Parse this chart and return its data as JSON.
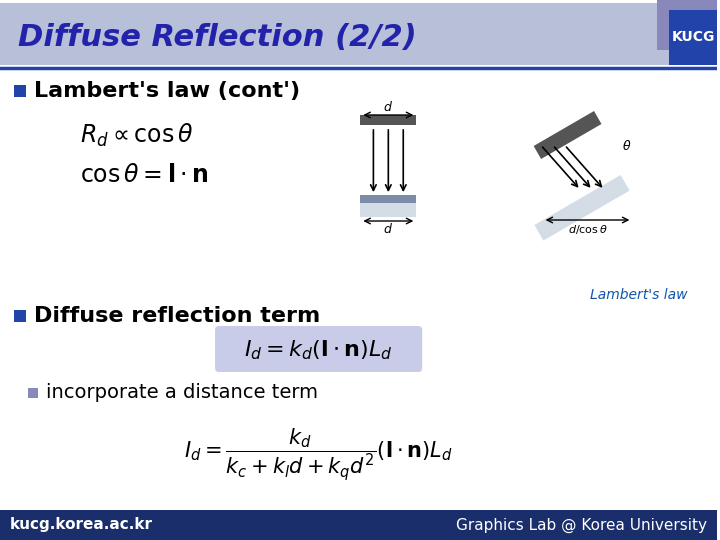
{
  "title": "Diffuse Reflection (2/2)",
  "title_color": "#2222AA",
  "title_bg_color": "#B8BFD8",
  "title_fontsize": 22,
  "kucg_box_color1": "#8888BB",
  "kucg_box_color2": "#2244AA",
  "kucg_text": "KUCG",
  "header_line_color": "#2244AA",
  "bullet_color1": "#2244AA",
  "bullet_color2": "#8888BB",
  "bg_color": "#FFFFFF",
  "section1_text": "Lambert's law (cont')",
  "section1_fontsize": 16,
  "formula1a": "$R_d \\propto \\cos\\theta$",
  "formula1b": "$\\cos\\theta = \\mathbf{l} \\cdot \\mathbf{n}$",
  "formula_fontsize": 15,
  "lambertlaw_text": "Lambert's law",
  "lambertlaw_color": "#1155AA",
  "section2_text": "Diffuse reflection term",
  "section2_fontsize": 16,
  "formula2": "$I_d = k_d (\\mathbf{l} \\cdot \\mathbf{n}) L_d$",
  "formula2_bg": "#C8CCE8",
  "formula2_fontsize": 15,
  "bullet2_text": "incorporate a distance term",
  "bullet2_fontsize": 14,
  "formula3": "$I_d = \\dfrac{k_d}{k_c + k_l d + k_q d^2} (\\mathbf{l} \\cdot \\mathbf{n}) L_d$",
  "formula3_fontsize": 14,
  "footer_bg": "#1A2E6B",
  "footer_text_left": "kucg.korea.ac.kr",
  "footer_text_right": "Graphics Lab @ Korea University",
  "footer_fontsize": 11,
  "footer_color": "#FFFFFF"
}
